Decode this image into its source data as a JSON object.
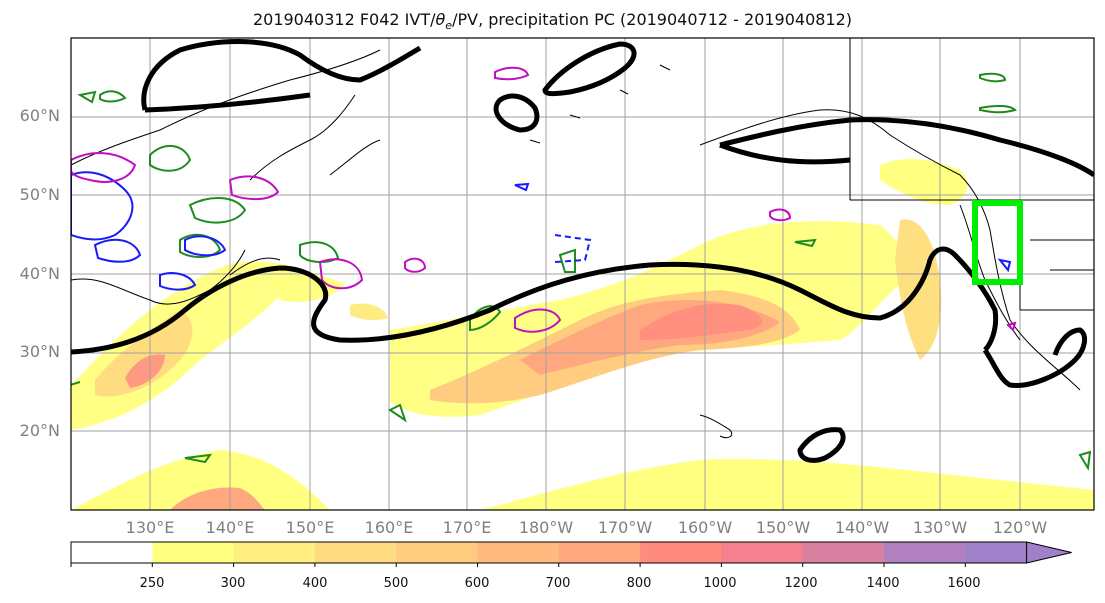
{
  "title": "2019040312 F042 IVT/θe/PV, precipitation PC (2019040712 - 2019040812)",
  "title_parts": {
    "prefix": "2019040312 F042 IVT/",
    "theta": "θ",
    "theta_sub": "e",
    "suffix": "/PV, precipitation PC (2019040712 - 2019040812)"
  },
  "map": {
    "lat_labels": [
      "60°N",
      "50°N",
      "40°N",
      "30°N",
      "20°N"
    ],
    "lon_labels": [
      "130°E",
      "140°E",
      "150°E",
      "160°E",
      "170°E",
      "180°W",
      "170°W",
      "160°W",
      "150°W",
      "140°W",
      "130°W",
      "120°W"
    ],
    "highlight_box_color": "#00ee00",
    "contour_color": "#000000"
  },
  "colorbar": {
    "labels": [
      "250",
      "300",
      "400",
      "500",
      "600",
      "700",
      "800",
      "1000",
      "1200",
      "1400",
      "1600"
    ],
    "colors": [
      "#ffffff",
      "#ffff80",
      "#ffef80",
      "#ffdc80",
      "#ffcc80",
      "#ffba80",
      "#ffa880",
      "#ff8a80",
      "#f48090",
      "#d880a0",
      "#b080c0",
      "#a080c8"
    ]
  }
}
